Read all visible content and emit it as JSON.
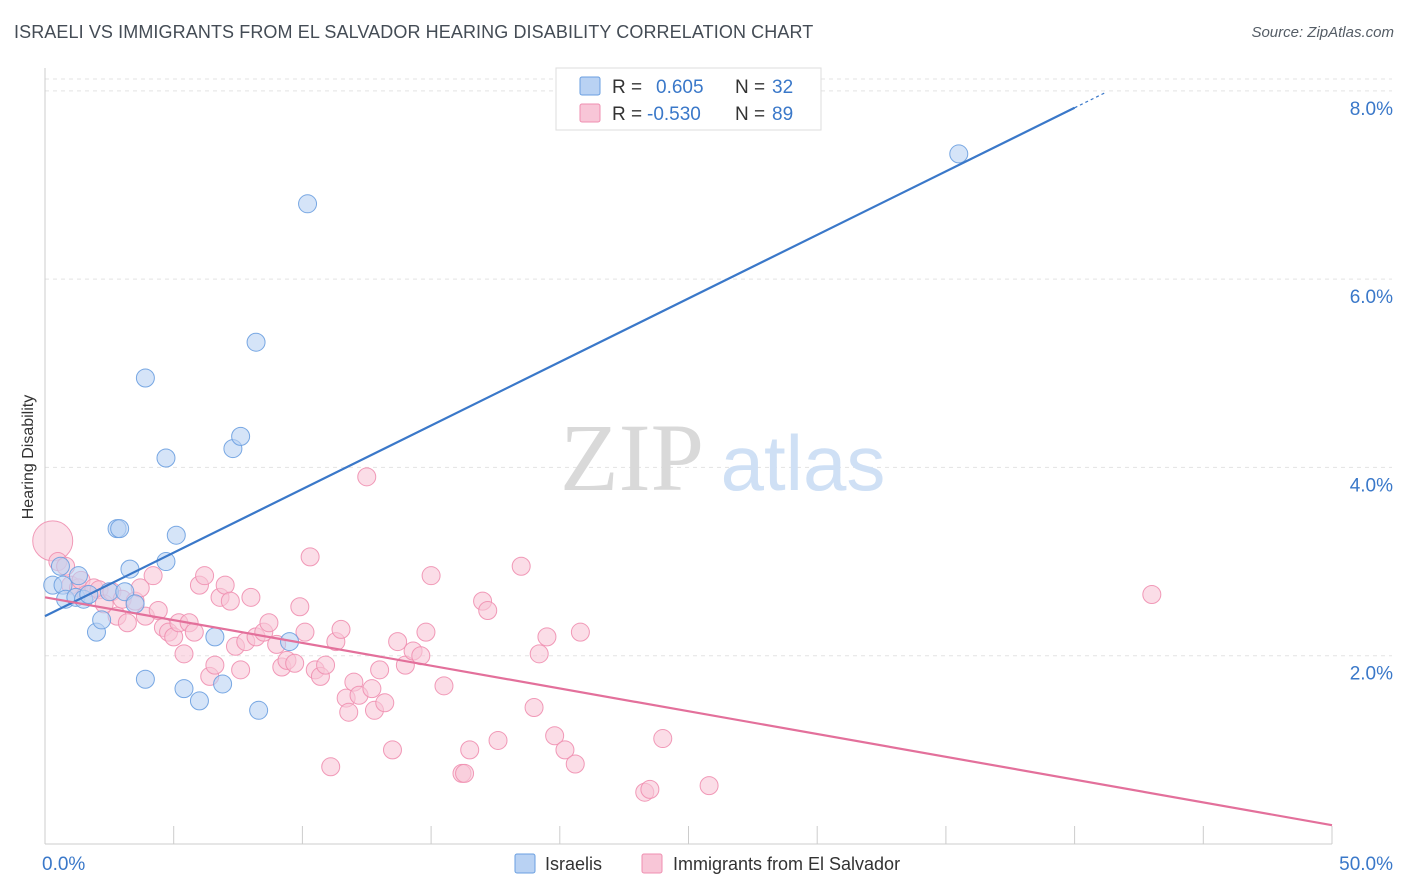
{
  "header": {
    "title": "ISRAELI VS IMMIGRANTS FROM EL SALVADOR HEARING DISABILITY CORRELATION CHART",
    "source": "Source: ZipAtlas.com"
  },
  "watermark": {
    "zip": "ZIP",
    "atlas": "atlas"
  },
  "stats_legend": [
    {
      "r_label": "R =",
      "r_value": "0.605",
      "n_label": "N =",
      "n_value": "32",
      "color": "#6a9fe0"
    },
    {
      "r_label": "R =",
      "r_value": "-0.530",
      "n_label": "N =",
      "n_value": "89",
      "color": "#ef8fb0"
    }
  ],
  "chart_data": {
    "type": "scatter",
    "title": "ISRAELI VS IMMIGRANTS FROM EL SALVADOR HEARING DISABILITY CORRELATION CHART",
    "ylabel": "Hearing Disability",
    "xlabel": "",
    "xlim": [
      0,
      50
    ],
    "ylim": [
      0,
      8.2
    ],
    "x_tick_labels": [
      {
        "value": 0,
        "label": "0.0%"
      },
      {
        "value": 50,
        "label": "50.0%"
      }
    ],
    "y_tick_labels": [
      {
        "value": 2,
        "label": "2.0%"
      },
      {
        "value": 4,
        "label": "4.0%"
      },
      {
        "value": 6,
        "label": "6.0%"
      },
      {
        "value": 8,
        "label": "8.0%"
      }
    ],
    "grid": true,
    "legend_position": "bottom",
    "series": [
      {
        "name": "Israelis",
        "color": "#6a9fe0",
        "fill": "#b9d2f3",
        "trend": {
          "x": [
            0,
            40
          ],
          "y": [
            2.42,
            7.82
          ]
        },
        "points": [
          [
            0.3,
            2.75
          ],
          [
            0.6,
            2.95
          ],
          [
            0.7,
            2.75
          ],
          [
            0.8,
            2.6
          ],
          [
            1.2,
            2.62
          ],
          [
            1.3,
            2.85
          ],
          [
            1.5,
            2.6
          ],
          [
            1.7,
            2.65
          ],
          [
            2.0,
            2.25
          ],
          [
            2.2,
            2.38
          ],
          [
            2.5,
            2.68
          ],
          [
            2.8,
            3.35
          ],
          [
            2.9,
            3.35
          ],
          [
            3.1,
            2.68
          ],
          [
            3.3,
            2.92
          ],
          [
            3.5,
            2.55
          ],
          [
            3.9,
            1.75
          ],
          [
            3.9,
            4.95
          ],
          [
            4.7,
            3.0
          ],
          [
            4.7,
            4.1
          ],
          [
            5.1,
            3.28
          ],
          [
            5.4,
            1.65
          ],
          [
            6.0,
            1.52
          ],
          [
            6.6,
            2.2
          ],
          [
            6.9,
            1.7
          ],
          [
            7.3,
            4.2
          ],
          [
            7.6,
            4.33
          ],
          [
            8.2,
            5.33
          ],
          [
            8.3,
            1.42
          ],
          [
            9.5,
            2.15
          ],
          [
            10.2,
            6.8
          ],
          [
            35.5,
            7.33
          ]
        ]
      },
      {
        "name": "Immigrants from El Salvador",
        "color": "#ef8fb0",
        "fill": "#f8c6d7",
        "trend": {
          "x": [
            0,
            50
          ],
          "y": [
            2.62,
            0.2
          ]
        },
        "points": [
          [
            0.3,
            3.22
          ],
          [
            0.5,
            3.0
          ],
          [
            0.8,
            2.95
          ],
          [
            1.0,
            2.75
          ],
          [
            1.3,
            2.72
          ],
          [
            1.4,
            2.8
          ],
          [
            1.6,
            2.65
          ],
          [
            1.9,
            2.72
          ],
          [
            2.1,
            2.7
          ],
          [
            2.3,
            2.55
          ],
          [
            2.6,
            2.68
          ],
          [
            2.8,
            2.42
          ],
          [
            3.0,
            2.6
          ],
          [
            3.2,
            2.35
          ],
          [
            3.5,
            2.58
          ],
          [
            3.7,
            2.72
          ],
          [
            3.9,
            2.42
          ],
          [
            4.2,
            2.85
          ],
          [
            4.4,
            2.48
          ],
          [
            4.6,
            2.3
          ],
          [
            4.8,
            2.25
          ],
          [
            5.0,
            2.2
          ],
          [
            5.2,
            2.35
          ],
          [
            5.4,
            2.02
          ],
          [
            5.6,
            2.35
          ],
          [
            5.8,
            2.25
          ],
          [
            6.0,
            2.75
          ],
          [
            6.2,
            2.85
          ],
          [
            6.4,
            1.78
          ],
          [
            6.6,
            1.9
          ],
          [
            6.8,
            2.62
          ],
          [
            7.0,
            2.75
          ],
          [
            7.2,
            2.58
          ],
          [
            7.4,
            2.1
          ],
          [
            7.6,
            1.85
          ],
          [
            7.8,
            2.15
          ],
          [
            8.0,
            2.62
          ],
          [
            8.2,
            2.2
          ],
          [
            8.5,
            2.25
          ],
          [
            8.7,
            2.35
          ],
          [
            9.0,
            2.12
          ],
          [
            9.2,
            1.88
          ],
          [
            9.4,
            1.95
          ],
          [
            9.7,
            1.92
          ],
          [
            9.9,
            2.52
          ],
          [
            10.1,
            2.25
          ],
          [
            10.3,
            3.05
          ],
          [
            10.5,
            1.85
          ],
          [
            10.7,
            1.78
          ],
          [
            10.9,
            1.9
          ],
          [
            11.1,
            0.82
          ],
          [
            11.3,
            2.15
          ],
          [
            11.5,
            2.28
          ],
          [
            11.7,
            1.55
          ],
          [
            11.8,
            1.4
          ],
          [
            12.0,
            1.72
          ],
          [
            12.2,
            1.58
          ],
          [
            12.5,
            3.9
          ],
          [
            12.7,
            1.65
          ],
          [
            12.8,
            1.42
          ],
          [
            13.0,
            1.85
          ],
          [
            13.2,
            1.5
          ],
          [
            13.5,
            1.0
          ],
          [
            13.7,
            2.15
          ],
          [
            14.0,
            1.9
          ],
          [
            14.3,
            2.05
          ],
          [
            14.6,
            2.0
          ],
          [
            14.8,
            2.25
          ],
          [
            15.0,
            2.85
          ],
          [
            15.5,
            1.68
          ],
          [
            16.2,
            0.75
          ],
          [
            16.3,
            0.75
          ],
          [
            16.5,
            1.0
          ],
          [
            17.0,
            2.58
          ],
          [
            17.2,
            2.48
          ],
          [
            17.6,
            1.1
          ],
          [
            18.5,
            2.95
          ],
          [
            19.0,
            1.45
          ],
          [
            19.2,
            2.02
          ],
          [
            19.5,
            2.2
          ],
          [
            19.8,
            1.15
          ],
          [
            20.2,
            1.0
          ],
          [
            20.6,
            0.85
          ],
          [
            20.8,
            2.25
          ],
          [
            23.3,
            0.55
          ],
          [
            24.0,
            1.12
          ],
          [
            25.8,
            0.62
          ],
          [
            43.0,
            2.65
          ],
          [
            23.5,
            0.58
          ]
        ]
      }
    ]
  }
}
